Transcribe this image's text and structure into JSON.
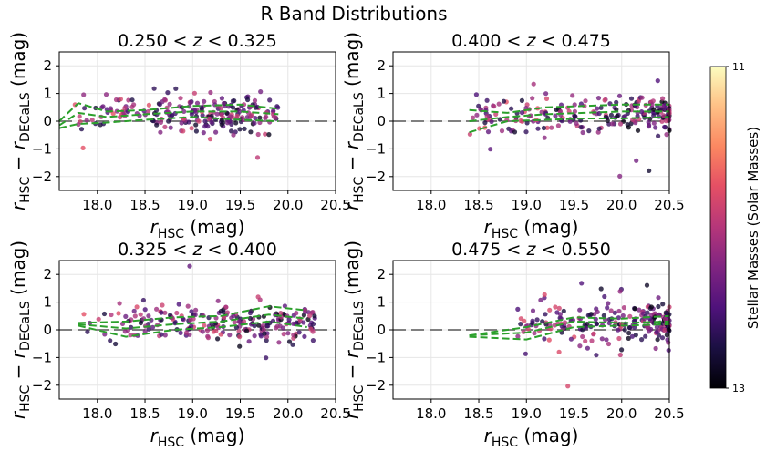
{
  "figure": {
    "suptitle": "R Band Distributions",
    "colorbar": {
      "label": "Stellar Masses (Solar Masses)",
      "tick_top": "11",
      "tick_bottom": "13",
      "colormap": "magma",
      "range": [
        11,
        13
      ]
    }
  },
  "chart_data": [
    {
      "type": "scatter",
      "title": "0.250 < z < 0.325",
      "xlabel": "r_HSC (mag)",
      "ylabel": "r_HSC - r_DECaLS (mag)",
      "xlim": [
        17.6,
        20.5
      ],
      "ylim": [
        -2.5,
        2.5
      ],
      "xticks": [
        "18.0",
        "18.5",
        "19.0",
        "19.5",
        "20.0",
        "20.5"
      ],
      "yticks": [
        "2",
        "1",
        "0",
        "-1",
        "-2"
      ],
      "grid": true,
      "reference_line_y": 0,
      "x_range_points": [
        17.7,
        19.9
      ],
      "dashed_lines": [
        {
          "x": [
            17.6,
            17.8,
            18.1,
            18.5,
            19.0,
            19.5,
            19.9
          ],
          "y": [
            0.0,
            0.65,
            0.35,
            0.4,
            0.55,
            0.6,
            0.45
          ]
        },
        {
          "x": [
            17.6,
            17.8,
            18.1,
            18.5,
            19.0,
            19.5,
            19.9
          ],
          "y": [
            -0.25,
            -0.1,
            -0.05,
            0.05,
            0.15,
            0.05,
            0.0
          ]
        },
        {
          "x": [
            17.6,
            17.8,
            18.1,
            18.5,
            19.0,
            19.5,
            19.9
          ],
          "y": [
            -0.15,
            0.3,
            0.15,
            0.25,
            0.35,
            0.35,
            0.25
          ]
        }
      ]
    },
    {
      "type": "scatter",
      "title": "0.400 < z < 0.475",
      "xlabel": "r_HSC (mag)",
      "ylabel": "r_HSC - r_DECaLS (mag)",
      "xlim": [
        17.6,
        20.5
      ],
      "ylim": [
        -2.5,
        2.5
      ],
      "xticks": [
        "18.0",
        "18.5",
        "19.0",
        "19.5",
        "20.0",
        "20.5"
      ],
      "yticks": [
        "2",
        "1",
        "0",
        "-1",
        "-2"
      ],
      "grid": true,
      "reference_line_y": 0,
      "x_range_points": [
        18.4,
        20.5
      ],
      "dashed_lines": [
        {
          "x": [
            18.4,
            18.8,
            19.2,
            19.6,
            20.0,
            20.5
          ],
          "y": [
            0.4,
            0.3,
            0.5,
            0.55,
            0.6,
            0.6
          ]
        },
        {
          "x": [
            18.4,
            18.8,
            19.2,
            19.6,
            20.0,
            20.5
          ],
          "y": [
            -0.4,
            0.0,
            0.05,
            0.1,
            0.1,
            0.15
          ]
        },
        {
          "x": [
            18.4,
            18.8,
            19.2,
            19.6,
            20.0,
            20.5
          ],
          "y": [
            0.0,
            0.15,
            0.25,
            0.3,
            0.35,
            0.35
          ]
        }
      ]
    },
    {
      "type": "scatter",
      "title": "0.325 < z < 0.400",
      "xlabel": "r_HSC (mag)",
      "ylabel": "r_HSC - r_DECaLS (mag)",
      "xlim": [
        17.6,
        20.5
      ],
      "ylim": [
        -2.5,
        2.5
      ],
      "xticks": [
        "18.0",
        "18.5",
        "19.0",
        "19.5",
        "20.0",
        "20.5"
      ],
      "yticks": [
        "2",
        "1",
        "0",
        "-1",
        "-2"
      ],
      "grid": true,
      "reference_line_y": 0,
      "x_range_points": [
        17.8,
        20.3
      ],
      "dashed_lines": [
        {
          "x": [
            17.8,
            18.3,
            18.8,
            19.3,
            19.8,
            20.2
          ],
          "y": [
            0.25,
            0.3,
            0.45,
            0.5,
            0.85,
            0.7
          ]
        },
        {
          "x": [
            17.8,
            18.3,
            18.8,
            19.3,
            19.8,
            20.2
          ],
          "y": [
            0.15,
            -0.25,
            0.0,
            0.1,
            0.3,
            0.1
          ]
        },
        {
          "x": [
            17.8,
            18.3,
            18.8,
            19.3,
            19.8,
            20.2
          ],
          "y": [
            0.2,
            0.05,
            0.2,
            0.3,
            0.55,
            0.4
          ]
        }
      ]
    },
    {
      "type": "scatter",
      "title": "0.475 < z < 0.550",
      "xlabel": "r_HSC (mag)",
      "ylabel": "r_HSC - r_DECaLS (mag)",
      "xlim": [
        17.6,
        20.5
      ],
      "ylim": [
        -2.5,
        2.5
      ],
      "xticks": [
        "18.0",
        "18.5",
        "19.0",
        "19.5",
        "20.0",
        "20.5"
      ],
      "yticks": [
        "2",
        "1",
        "0",
        "-1",
        "-2"
      ],
      "grid": true,
      "reference_line_y": 0,
      "x_range_points": [
        18.9,
        20.5
      ],
      "dashed_lines": [
        {
          "x": [
            18.4,
            19.0,
            19.5,
            20.0,
            20.5
          ],
          "y": [
            -0.2,
            0.1,
            0.45,
            0.4,
            0.5
          ]
        },
        {
          "x": [
            18.4,
            19.0,
            19.5,
            20.0,
            20.5
          ],
          "y": [
            -0.25,
            -0.35,
            0.1,
            0.15,
            0.2
          ]
        },
        {
          "x": [
            18.4,
            19.0,
            19.5,
            20.0,
            20.5
          ],
          "y": [
            -0.2,
            -0.1,
            0.3,
            0.25,
            0.3
          ]
        }
      ]
    }
  ]
}
